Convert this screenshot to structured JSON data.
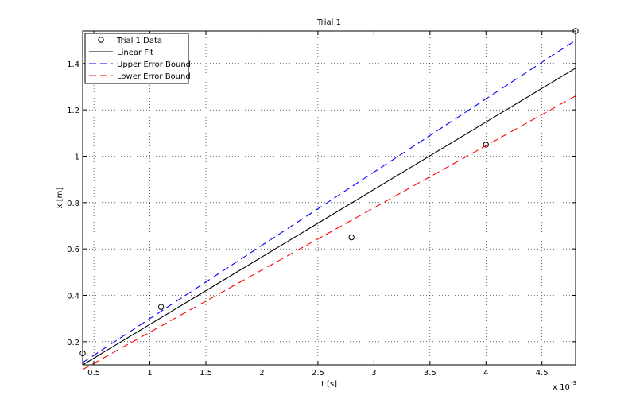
{
  "chart_data": {
    "type": "line",
    "title": "Trial 1",
    "xlabel": "t [s]",
    "ylabel": "x [m]",
    "x_exponent": "x 10",
    "x_exponent_power": "-3",
    "xlim": [
      0.4,
      4.8
    ],
    "ylim": [
      0.1,
      1.54
    ],
    "xticks": [
      0.5,
      1,
      1.5,
      2,
      2.5,
      3,
      3.5,
      4,
      4.5
    ],
    "xtick_labels": [
      "0.5",
      "1",
      "1.5",
      "2",
      "2.5",
      "3",
      "3.5",
      "4",
      "4.5"
    ],
    "yticks": [
      0.2,
      0.4,
      0.6,
      0.8,
      1.0,
      1.2,
      1.4
    ],
    "ytick_labels": [
      "0.2",
      "0.4",
      "0.6",
      "0.8",
      "1",
      "1.2",
      "1.4"
    ],
    "grid": true,
    "legend_position": "top-left",
    "series": [
      {
        "name": "Trial 1 Data",
        "kind": "scatter",
        "color": "#000000",
        "x": [
          0.4,
          1.1,
          2.8,
          4.0,
          4.8
        ],
        "y": [
          0.15,
          0.35,
          0.65,
          1.05,
          1.54
        ]
      },
      {
        "name": "Linear Fit",
        "kind": "line",
        "color": "#000000",
        "dash": "solid",
        "x": [
          0.4,
          4.8
        ],
        "y": [
          0.1,
          1.38
        ]
      },
      {
        "name": "Upper Error Bound",
        "kind": "line",
        "color": "#0000ff",
        "dash": "dashed",
        "x": [
          0.4,
          4.8
        ],
        "y": [
          0.11,
          1.5
        ]
      },
      {
        "name": "Lower Error Bound",
        "kind": "line",
        "color": "#ff0000",
        "dash": "dashed",
        "x": [
          0.4,
          4.8
        ],
        "y": [
          0.08,
          1.26
        ]
      }
    ]
  }
}
